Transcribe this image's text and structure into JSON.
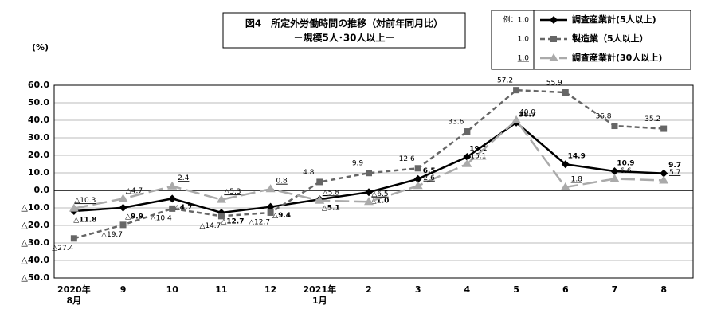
{
  "chart_data": {
    "type": "line",
    "title": "図4　所定外労働時間の推移（対前年同月比）",
    "subtitle": "－規模5人･30人以上－",
    "y_unit": "(%)",
    "categories": [
      "2020年\n8月",
      "9",
      "10",
      "11",
      "12",
      "2021年\n1月",
      "2",
      "3",
      "4",
      "5",
      "6",
      "7",
      "8"
    ],
    "ylim": [
      -50,
      60
    ],
    "yticks": [
      {
        "value": 60,
        "label": "60.0"
      },
      {
        "value": 50,
        "label": "50.0"
      },
      {
        "value": 40,
        "label": "40.0"
      },
      {
        "value": 30,
        "label": "30.0"
      },
      {
        "value": 20,
        "label": "20.0"
      },
      {
        "value": 10,
        "label": "10.0"
      },
      {
        "value": 0,
        "label": "0.0"
      },
      {
        "value": -10,
        "label": "△10.0"
      },
      {
        "value": -20,
        "label": "△20.0"
      },
      {
        "value": -30,
        "label": "△30.0"
      },
      {
        "value": -40,
        "label": "△40.0"
      },
      {
        "value": -50,
        "label": "△50.0"
      }
    ],
    "grid": true,
    "series": [
      {
        "name": "調査産業計(5人以上)",
        "legend_sample": "例：1.0",
        "color": "#000000",
        "dash": "none",
        "marker": "diamond",
        "label_style": "bold",
        "values": [
          -11.8,
          -9.9,
          -4.7,
          -12.7,
          -9.4,
          -5.1,
          -1.0,
          6.5,
          19.1,
          38.7,
          14.9,
          10.9,
          9.7
        ],
        "value_labels": [
          "△11.8",
          "△9.9",
          "△4.7",
          "△12.7",
          "△9.4",
          "△5.1",
          "△1.0",
          "6.5",
          "19.1",
          "38.7",
          "14.9",
          "10.9",
          "9.7"
        ]
      },
      {
        "name": "製造業（5人以上）",
        "legend_sample": "1.0",
        "color": "#666666",
        "dash": "6,4",
        "marker": "square",
        "label_style": "plain",
        "values": [
          -27.4,
          -19.7,
          -10.4,
          -14.7,
          -12.7,
          4.8,
          9.9,
          12.6,
          33.6,
          57.2,
          55.9,
          36.8,
          35.2
        ],
        "value_labels": [
          "△27.4",
          "△19.7",
          "△10.4",
          "△14.7",
          "△12.7",
          "4.8",
          "9.9",
          "12.6",
          "33.6",
          "57.2",
          "55.9",
          "36.8",
          "35.2"
        ]
      },
      {
        "name": "調査産業計(30人以上)",
        "legend_sample": "1.0",
        "color": "#aaaaaa",
        "dash": "18,6",
        "marker": "triangle",
        "label_style": "underline",
        "values": [
          -10.3,
          -4.7,
          2.4,
          -5.3,
          0.8,
          -5.8,
          -6.5,
          2.6,
          15.1,
          40.0,
          1.8,
          6.6,
          5.7
        ],
        "value_labels": [
          "△10.3",
          "△4.7",
          "2.4",
          "△5.3",
          "0.8",
          "△5.8",
          "△6.5",
          "2.6",
          "15.1",
          "40.0",
          "1.8",
          "6.6",
          "5.7"
        ]
      }
    ]
  }
}
